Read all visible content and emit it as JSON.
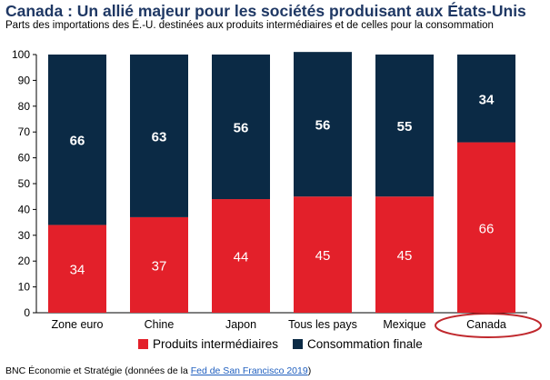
{
  "title": "Canada : Un allié majeur pour les sociétés produisant aux États-Unis",
  "subtitle": "Parts des importations des É.-U. destinées aux produits intermédiaires et de celles pour la consommation",
  "source": {
    "prefix": "BNC Économie et Stratégie (données de la ",
    "link_text": "Fed de San Francisco 2019",
    "suffix": ")"
  },
  "chart_data": {
    "type": "bar",
    "stacked": true,
    "categories": [
      "Zone euro",
      "Chine",
      "Japon",
      "Tous les pays",
      "Mexique",
      "Canada"
    ],
    "series": [
      {
        "name": "Produits intermédiaires",
        "values": [
          34,
          37,
          44,
          45,
          45,
          66
        ],
        "color": "#e3202a"
      },
      {
        "name": "Consommation finale",
        "values": [
          66,
          63,
          56,
          56,
          55,
          34
        ],
        "color": "#0b2a45"
      }
    ],
    "y_unit": "%",
    "ylim": [
      0,
      100
    ],
    "yticks": [
      0,
      10,
      20,
      30,
      40,
      50,
      60,
      70,
      80,
      90,
      100
    ],
    "grid": false,
    "legend": "bottom",
    "highlight_category": "Canada",
    "highlight_color": "#c0282d"
  }
}
